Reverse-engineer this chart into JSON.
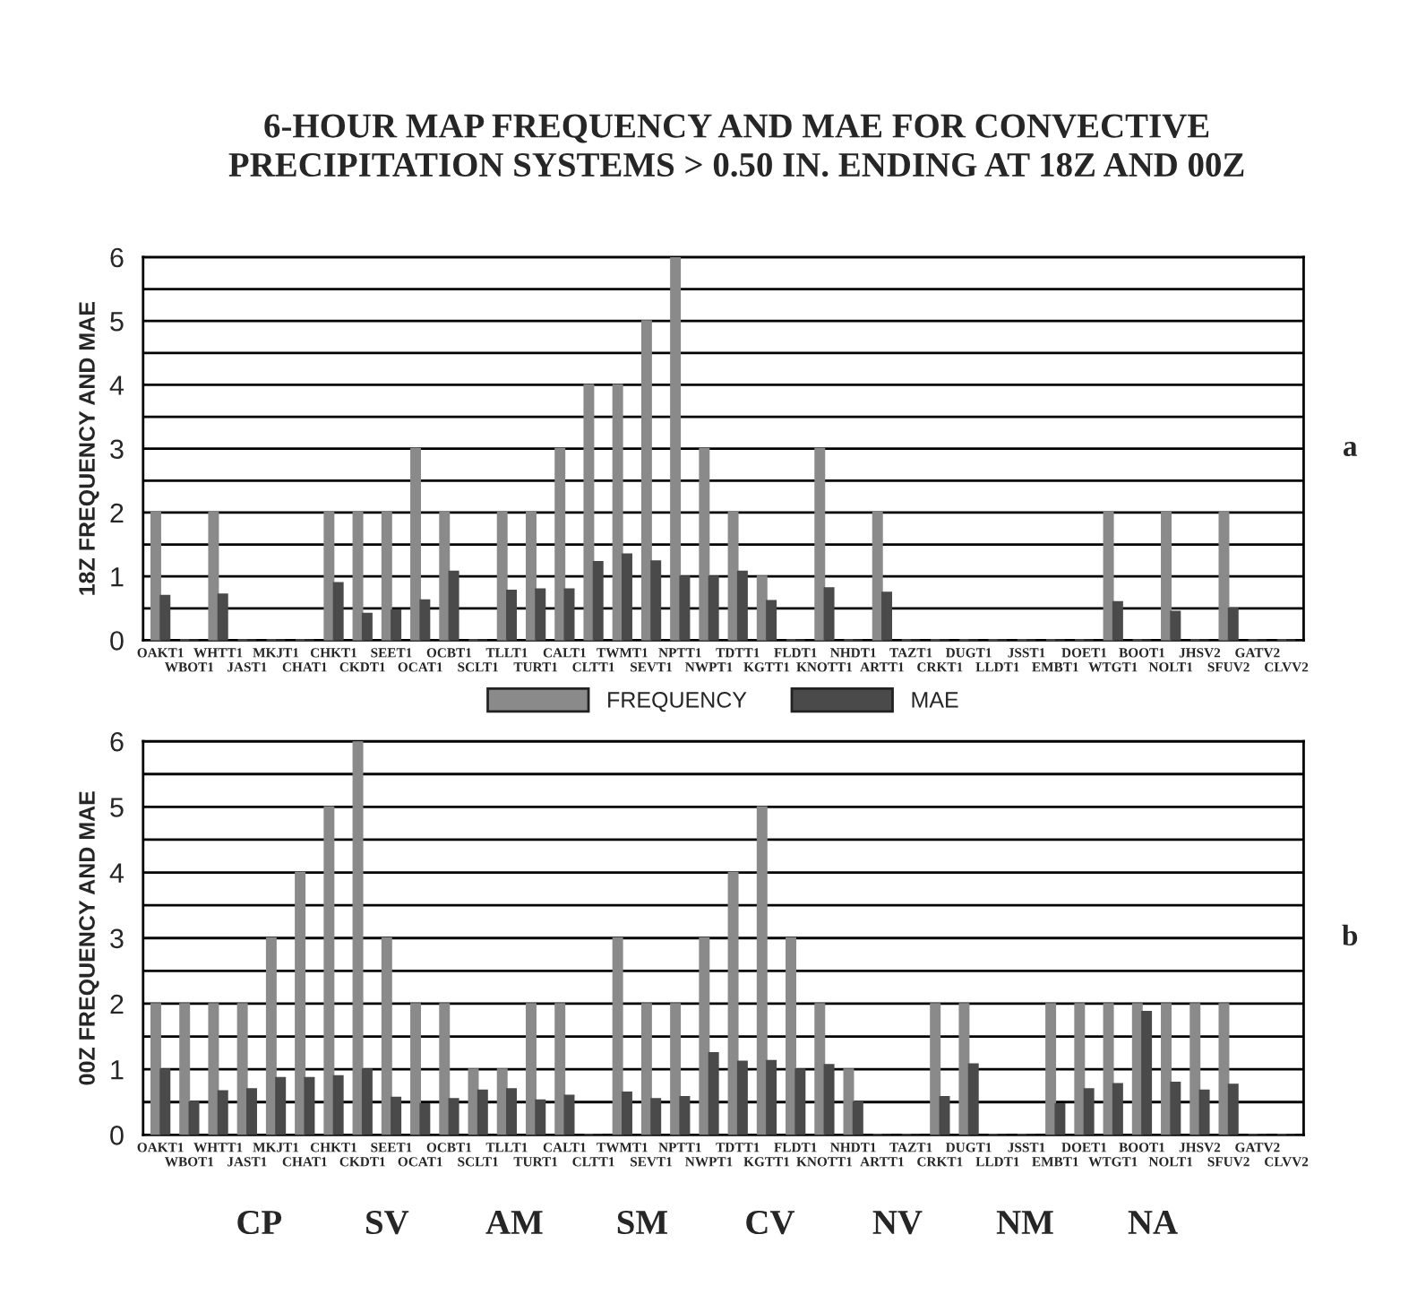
{
  "chart_data": [
    {
      "type": "bar",
      "title": "6-HOUR MAP FREQUENCY AND MAE FOR CONVECTIVE\nPRECIPITATION SYSTEMS > 0.50 IN. ENDING AT 18Z AND 00Z",
      "ylabel": "18Z FREQUENCY AND MAE",
      "categories": [
        "OAKT1",
        "WBOT1",
        "WHTT1",
        "JAST1",
        "MKJT1",
        "CHAT1",
        "CHKT1",
        "CKDT1",
        "SEET1",
        "OCAT1",
        "OCBT1",
        "SCLT1",
        "TLLT1",
        "TURT1",
        "CALT1",
        "CLTT1",
        "TWMT1",
        "SEVT1",
        "NPTT1",
        "NWPT1",
        "TDTT1",
        "KGTT1",
        "FLDT1",
        "KNOTT1",
        "NHDT1",
        "ARTT1",
        "TAZT1",
        "CRKT1",
        "DUGT1",
        "LLDT1",
        "JSST1",
        "EMBT1",
        "DOET1",
        "WTGT1",
        "BOOT1",
        "NOLT1",
        "JHSV2",
        "SFUV2",
        "GATV2",
        "CLVV2"
      ],
      "series": [
        {
          "name": "FREQUENCY",
          "color": "#8a8a8a",
          "values": [
            2,
            0,
            2,
            0,
            0,
            0,
            2,
            2,
            2,
            3,
            2,
            0,
            2,
            2,
            3,
            4,
            4,
            5,
            6,
            3,
            2,
            1,
            0,
            3,
            0,
            2,
            0,
            0,
            0,
            0,
            0,
            0,
            0,
            2,
            0,
            2,
            0,
            2,
            0,
            0
          ]
        },
        {
          "name": "MAE",
          "color": "#4a4a4a",
          "values": [
            0.7,
            0,
            0.72,
            0,
            0,
            0,
            0.9,
            0.42,
            0.47,
            0.63,
            1.08,
            0,
            0.78,
            0.8,
            0.8,
            1.23,
            1.35,
            1.24,
            1.0,
            1.0,
            1.08,
            0.62,
            0,
            0.82,
            0,
            0.75,
            0,
            0,
            0,
            0,
            0,
            0,
            0,
            0.6,
            0,
            0.45,
            0,
            0.5,
            0,
            0
          ]
        }
      ],
      "ylim": [
        0,
        6
      ],
      "yticks": [
        0,
        {
          "value": 0.5,
          "label": null
        },
        1,
        {
          "value": 1.5,
          "label": null
        },
        2,
        {
          "value": 2.5,
          "label": null
        },
        3,
        {
          "value": 3.5,
          "label": null
        },
        4,
        {
          "value": 4.5,
          "label": null
        },
        5,
        {
          "value": 5.5,
          "label": null
        },
        6
      ],
      "grid": "y",
      "legend": "bottom",
      "annotations": [
        "a"
      ]
    },
    {
      "type": "bar",
      "ylabel": "00Z FREQUENCY AND MAE",
      "categories": [
        "OAKT1",
        "WBOT1",
        "WHTT1",
        "JAST1",
        "MKJT1",
        "CHAT1",
        "CHKT1",
        "CKDT1",
        "SEET1",
        "OCAT1",
        "OCBT1",
        "SCLT1",
        "TLLT1",
        "TURT1",
        "CALT1",
        "CLTT1",
        "TWMT1",
        "SEVT1",
        "NPTT1",
        "NWPT1",
        "TDTT1",
        "KGTT1",
        "FLDT1",
        "KNOTT1",
        "NHDT1",
        "ARTT1",
        "TAZT1",
        "CRKT1",
        "DUGT1",
        "LLDT1",
        "JSST1",
        "EMBT1",
        "DOET1",
        "WTGT1",
        "BOOT1",
        "NOLT1",
        "JHSV2",
        "SFUV2",
        "GATV2",
        "CLVV2"
      ],
      "series": [
        {
          "color": "#8a8a8a",
          "values": [
            2,
            2,
            2,
            2,
            3,
            4,
            5,
            6,
            3,
            2,
            2,
            1,
            1,
            2,
            2,
            0,
            3,
            2,
            2,
            3,
            4,
            5,
            3,
            2,
            1,
            0,
            0,
            2,
            2,
            0,
            0,
            2,
            2,
            2,
            2,
            2,
            2,
            2,
            0,
            0
          ]
        },
        {
          "color": "#4a4a4a",
          "values": [
            1.0,
            0.5,
            0.67,
            0.7,
            0.87,
            0.87,
            0.9,
            1.0,
            0.57,
            0.47,
            0.55,
            0.68,
            0.7,
            0.53,
            0.6,
            0,
            0.65,
            0.55,
            0.58,
            1.25,
            1.12,
            1.13,
            1.0,
            1.07,
            0.5,
            0,
            0,
            0.58,
            1.08,
            0,
            0,
            0.47,
            0.7,
            0.78,
            1.88,
            0.8,
            0.68,
            0.77,
            0,
            0
          ]
        }
      ],
      "ylim": [
        0,
        6
      ],
      "yticks": [
        0,
        {
          "value": 0.5,
          "label": null
        },
        1,
        {
          "value": 1.5,
          "label": null
        },
        2,
        {
          "value": 2.5,
          "label": null
        },
        3,
        {
          "value": 3.5,
          "label": null
        },
        4,
        {
          "value": 4.5,
          "label": null
        },
        5,
        {
          "value": 5.5,
          "label": null
        },
        6
      ],
      "grid": "y",
      "annotations": [
        "b",
        "CP",
        "SV",
        "AM",
        "SM",
        "CV",
        "NV",
        "NM",
        "NA"
      ]
    }
  ]
}
